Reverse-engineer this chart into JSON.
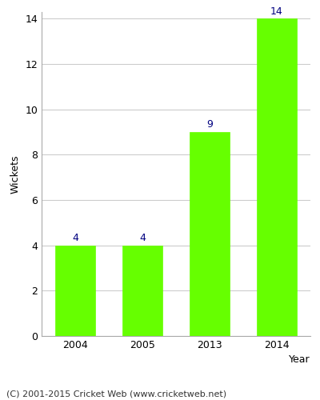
{
  "categories": [
    "2004",
    "2005",
    "2013",
    "2014"
  ],
  "values": [
    4,
    4,
    9,
    14
  ],
  "bar_color": "#66ff00",
  "bar_edge_color": "#66ff00",
  "title": "",
  "xlabel": "Year",
  "ylabel": "Wickets",
  "ylim": [
    0,
    14
  ],
  "yticks": [
    0,
    2,
    4,
    6,
    8,
    10,
    12,
    14
  ],
  "label_color": "#000080",
  "label_fontsize": 9,
  "axis_label_fontsize": 9,
  "tick_fontsize": 9,
  "footer": "(C) 2001-2015 Cricket Web (www.cricketweb.net)",
  "footer_fontsize": 8,
  "background_color": "#ffffff",
  "grid_color": "#cccccc"
}
